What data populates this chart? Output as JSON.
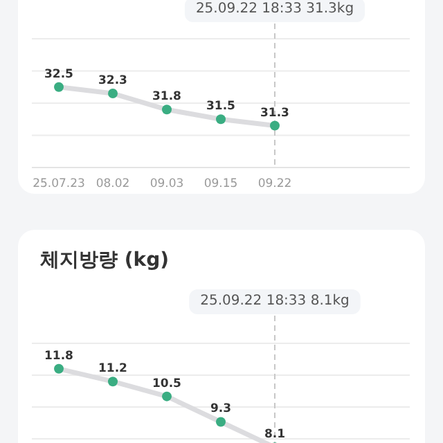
{
  "chart_data": [
    {
      "type": "line",
      "categories": [
        "25.07.23",
        "08.02",
        "09.03",
        "09.15",
        "09.22"
      ],
      "series": [
        {
          "color": "#dcdcdf",
          "colors": [
            "#3aad82",
            "#3aad82",
            "#3aad82",
            "#3aad82",
            "#3aad82"
          ],
          "values": [
            32.5,
            32.3,
            31.8,
            31.5,
            31.3
          ]
        }
      ],
      "ylim": [
        30,
        34
      ],
      "yticks": [
        {
          "value": 30,
          "label": null
        },
        {
          "value": 31,
          "label": null
        },
        {
          "value": 32,
          "label": null
        },
        {
          "value": 33,
          "label": null
        },
        {
          "value": 34,
          "label": null
        }
      ],
      "tick_labels": "x",
      "grid": "y",
      "marker": "circle",
      "line_style": "solid",
      "data_labels": true,
      "ref_lines": [
        {
          "axis": "x",
          "value": "09.22",
          "label": "25.09.22 18:33 31.3kg",
          "line_style": "dashed",
          "color": "#c8c8c8"
        }
      ]
    },
    {
      "type": "line",
      "title": "체지방량 (kg)",
      "categories": [
        null,
        null,
        null,
        null,
        null
      ],
      "series": [
        {
          "color": "#dcdcdf",
          "colors": [
            "#3aad82",
            "#3aad82",
            "#3aad82",
            "#3aad82",
            "#3aad82"
          ],
          "values": [
            11.8,
            11.2,
            10.5,
            9.3,
            8.1
          ]
        }
      ],
      "ylim": [
        7,
        13
      ],
      "yticks": [
        {
          "value": 8.5,
          "label": null
        },
        {
          "value": 10,
          "label": null
        },
        {
          "value": 11.5,
          "label": null
        },
        {
          "value": 13,
          "label": null
        }
      ],
      "tick_labels": false,
      "grid": "y",
      "marker": "circle",
      "line_style": "solid",
      "data_labels": true,
      "annotations": [
        "25.09.22 18:33 8.1kg"
      ]
    }
  ]
}
